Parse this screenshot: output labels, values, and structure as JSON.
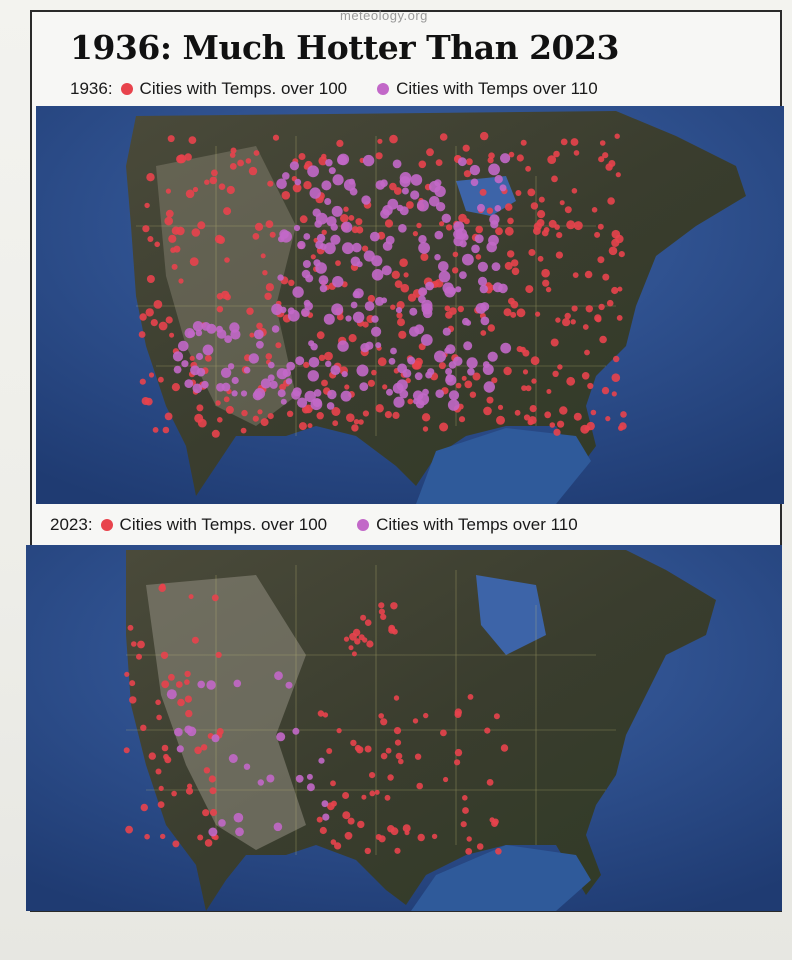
{
  "watermark": "meteology.org",
  "title": "1936: Much Hotter Than 2023",
  "colors": {
    "over100": "#e8434c",
    "over110": "#c268c8",
    "ocean": "#2d4f8c",
    "land": "#3a3d2c"
  },
  "panels": [
    {
      "year": "1936:",
      "legend_over100": "Cities with Temps. over 100",
      "legend_over110": "Cities with Temps over 110"
    },
    {
      "year": "2023:",
      "legend_over100": "Cities with Temps. over 100",
      "legend_over110": "Cities with Temps over 110"
    }
  ]
}
